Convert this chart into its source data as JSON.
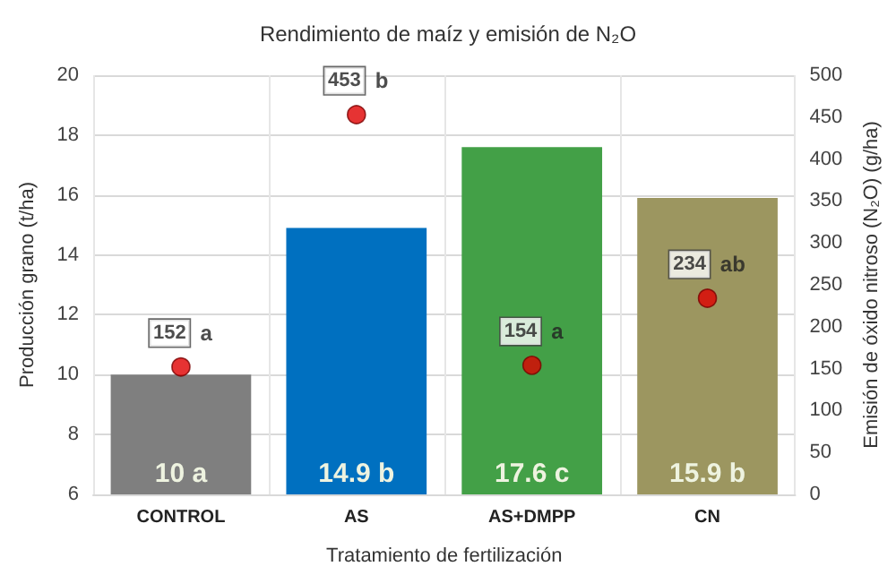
{
  "chart_data": {
    "type": "bar",
    "title": "Rendimiento de maíz y emisión de N₂O",
    "xlabel": "Tratamiento de fertilización",
    "ylabel": "Producción grano (t/ha)",
    "y2label": "Emisión de óxido nitroso (N₂O) (g/ha)",
    "categories": [
      "CONTROL",
      "AS",
      "AS+DMPP",
      "CN"
    ],
    "series": [
      {
        "colors": [
          "#7f7f7f",
          "#0070c0",
          "#43a047",
          "#9c9660"
        ],
        "values": [
          10,
          14.9,
          17.6,
          15.9
        ],
        "value_labels": [
          "10 a",
          "14.9 b",
          "17.6 c",
          "15.9 b"
        ]
      },
      {
        "type": "scatter",
        "axis": "y2",
        "color": "#e00000",
        "values": [
          152,
          453,
          154,
          234
        ],
        "value_labels": [
          "152 a",
          "453 b",
          "154 a",
          "234 ab"
        ]
      }
    ],
    "ylim": [
      6,
      20
    ],
    "yticks": [
      6,
      8,
      10,
      12,
      14,
      16,
      18,
      20
    ],
    "y2lim": [
      0,
      500
    ],
    "y2ticks": [
      0,
      50,
      100,
      150,
      200,
      250,
      300,
      350,
      400,
      450,
      500
    ],
    "grid": true,
    "marker": "circle"
  }
}
